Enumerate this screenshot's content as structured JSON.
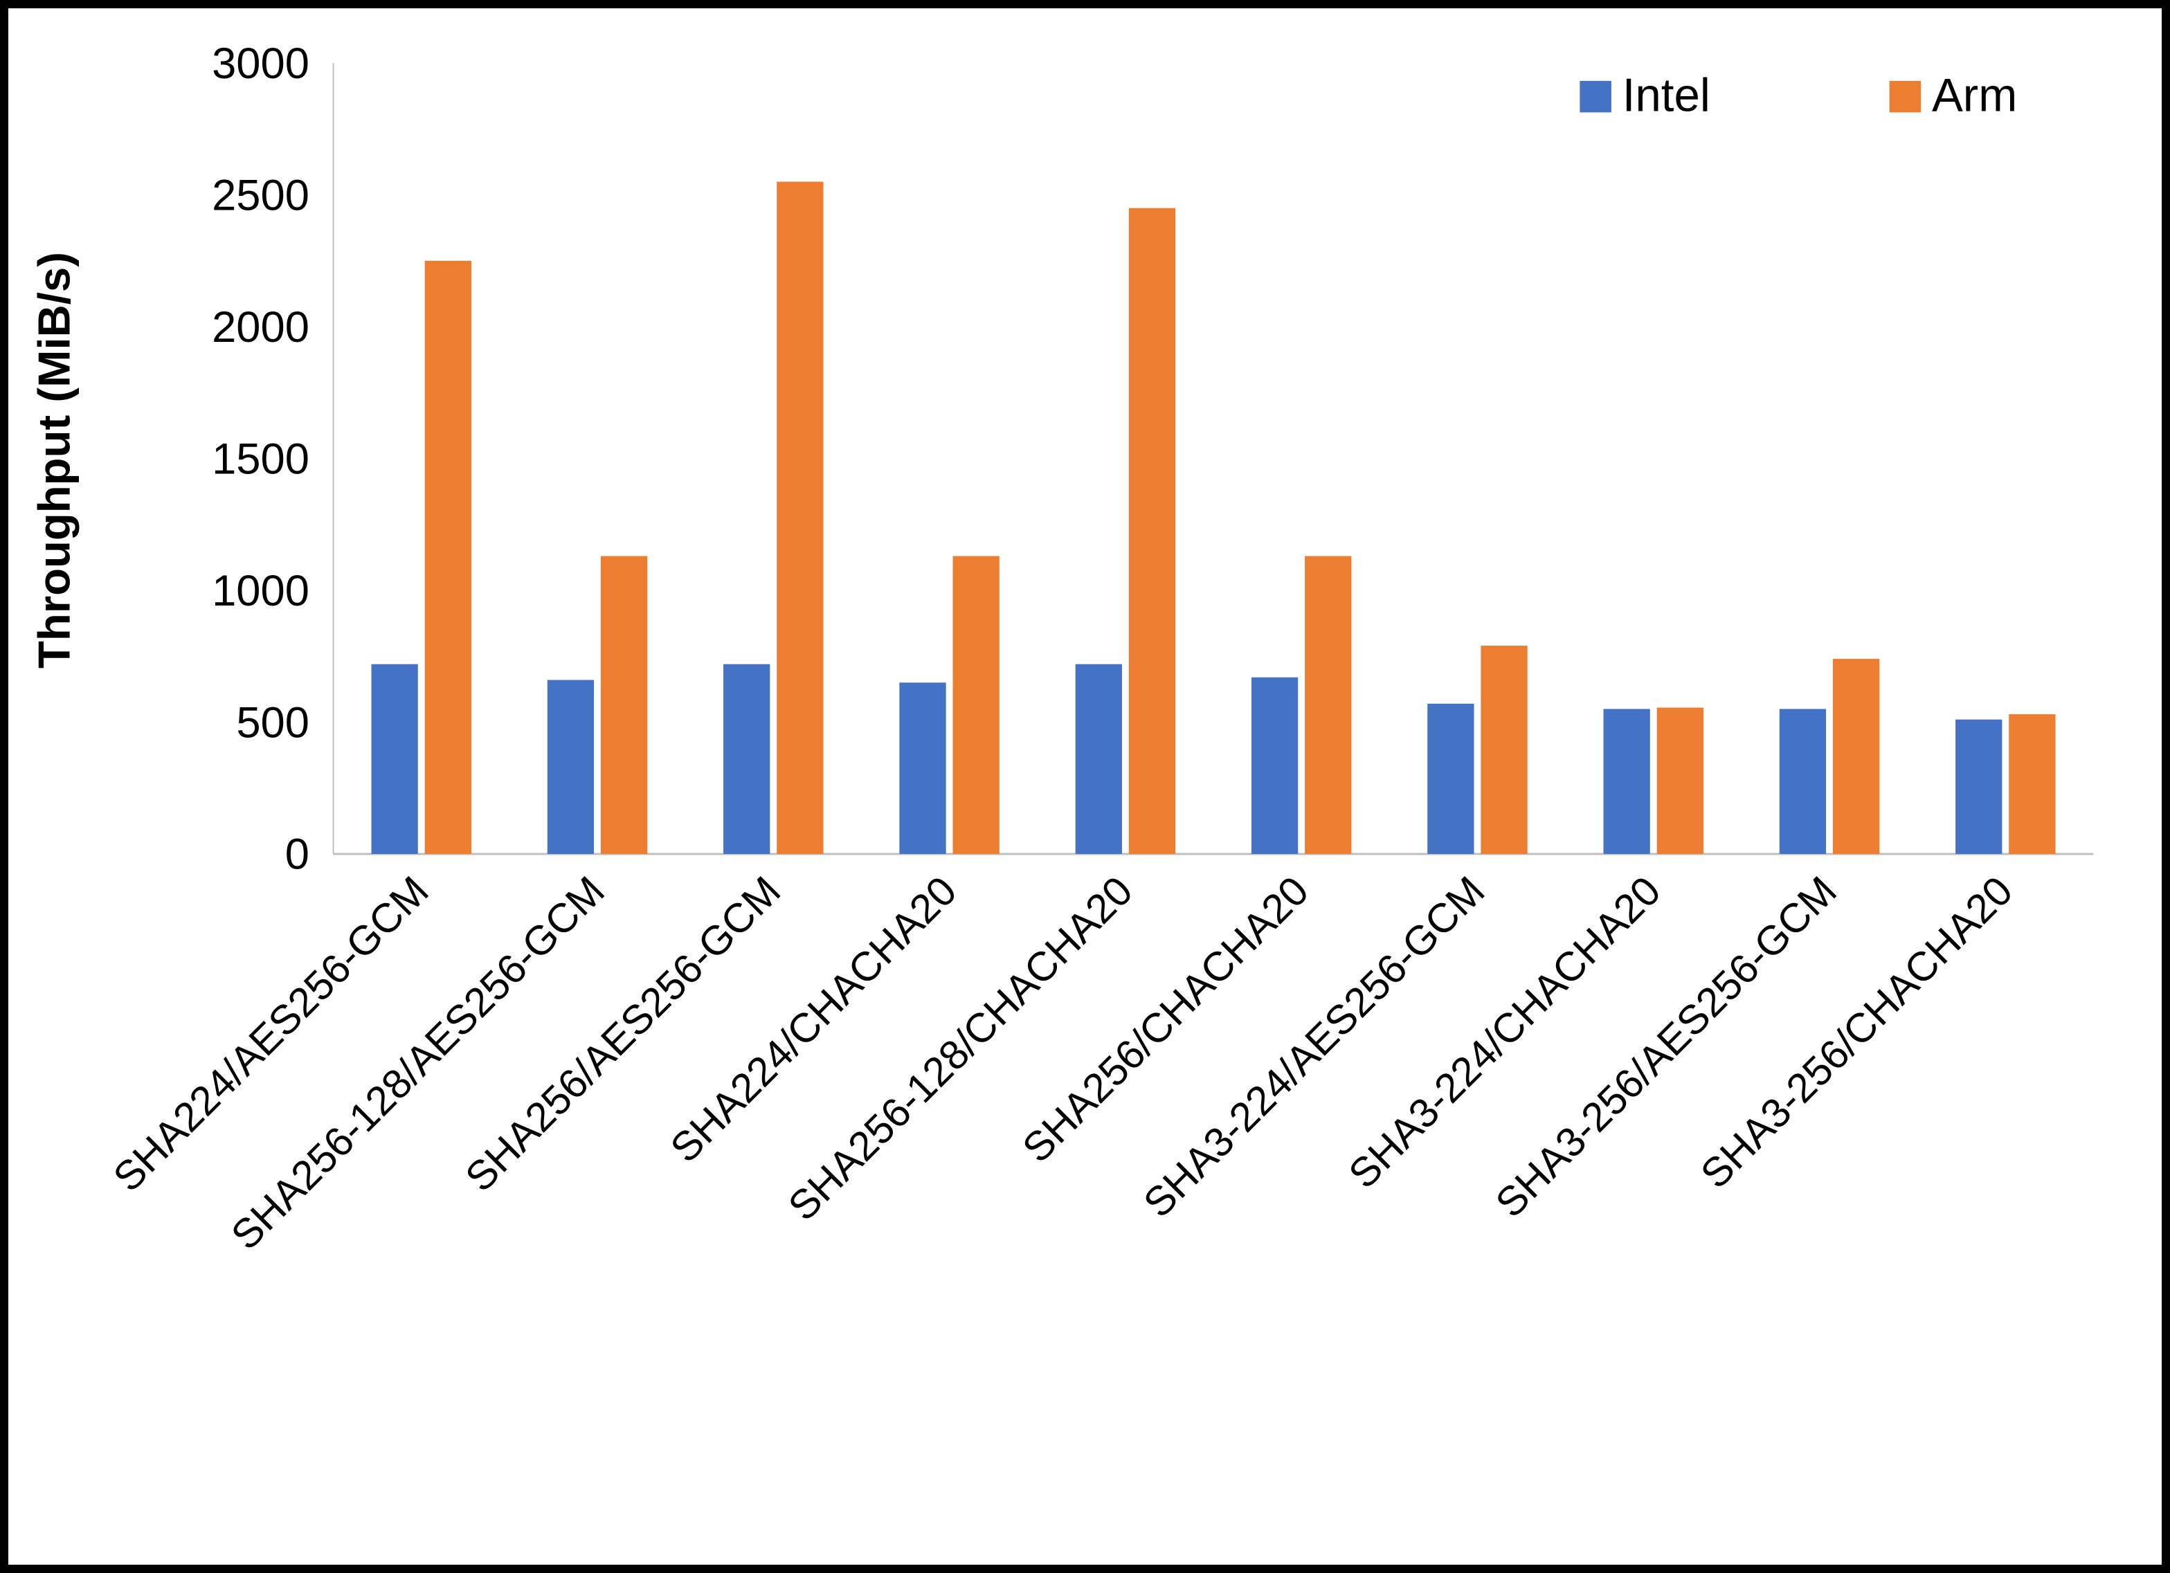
{
  "chart_data": {
    "type": "bar",
    "title": "",
    "ylabel": "Throughput (MiB/s)",
    "xlabel": "",
    "ylim": [
      0,
      3000
    ],
    "ytick_step": 500,
    "grid": false,
    "legend_position": "top-right",
    "categories": [
      "SHA224/AES256-GCM",
      "SHA256-128/AES256-GCM",
      "SHA256/AES256-GCM",
      "SHA224/CHACHA20",
      "SHA256-128/CHACHA20",
      "SHA256/CHACHA20",
      "SHA3-224/AES256-GCM",
      "SHA3-224/CHACHA20",
      "SHA3-256/AES256-GCM",
      "SHA3-256/CHACHA20"
    ],
    "series": [
      {
        "name": "Intel",
        "color": "#4472C4",
        "values": [
          720,
          660,
          720,
          650,
          720,
          670,
          570,
          550,
          550,
          510
        ]
      },
      {
        "name": "Arm",
        "color": "#ED7D31",
        "values": [
          2250,
          1130,
          2550,
          1130,
          2450,
          1130,
          790,
          555,
          740,
          530
        ]
      }
    ],
    "axis_color": "#bfbfbf"
  }
}
